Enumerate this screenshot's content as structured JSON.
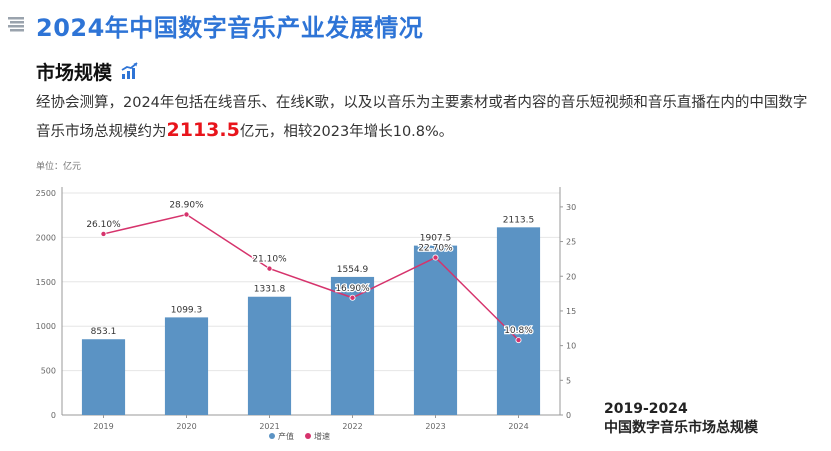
{
  "page": {
    "title": "2024年中国数字音乐产业发展情况",
    "section_title": "市场规模",
    "summary_before": "经协会测算，2024年包括在线音乐、在线K歌，以及以音乐为主要素材或者内容的音乐短视频和音乐直播在内的中国数字音乐市场总规模约为",
    "summary_highlight": "2113.5",
    "summary_after": "亿元，相较2023年增长10.8%。",
    "caption_line1": "2019-2024",
    "caption_line2": "中国数字音乐市场总规模"
  },
  "colors": {
    "title": "#2e74d6",
    "bar": "#5b93c4",
    "line": "#d6336c",
    "highlight": "#e8141b"
  },
  "chart_data": {
    "type": "bar",
    "unit_label": "单位：亿元",
    "categories": [
      "2019",
      "2020",
      "2021",
      "2022",
      "2023",
      "2024"
    ],
    "series": [
      {
        "name": "产值",
        "type": "bar",
        "axis": "left",
        "values": [
          853.1,
          1099.3,
          1331.8,
          1554.9,
          1907.5,
          2113.5
        ],
        "labels": [
          "853.1",
          "1099.3",
          "1331.8",
          "1554.9",
          "1907.5",
          "2113.5"
        ]
      },
      {
        "name": "增速",
        "type": "line",
        "axis": "right",
        "values": [
          26.1,
          28.9,
          21.1,
          16.9,
          22.7,
          10.8
        ],
        "labels": [
          "26.10%",
          "28.90%",
          "21.10%",
          "16.90%",
          "22.70%",
          "10.8%"
        ]
      }
    ],
    "y_left": {
      "min": 0,
      "max": 2500,
      "ticks": [
        0,
        500,
        1000,
        1500,
        2000,
        2500
      ]
    },
    "y_right": {
      "min": 0,
      "max": 32,
      "ticks": [
        0,
        5,
        10,
        15,
        20,
        25,
        30
      ]
    },
    "legend": [
      "产值",
      "增速"
    ],
    "legend_position": "bottom-center"
  }
}
